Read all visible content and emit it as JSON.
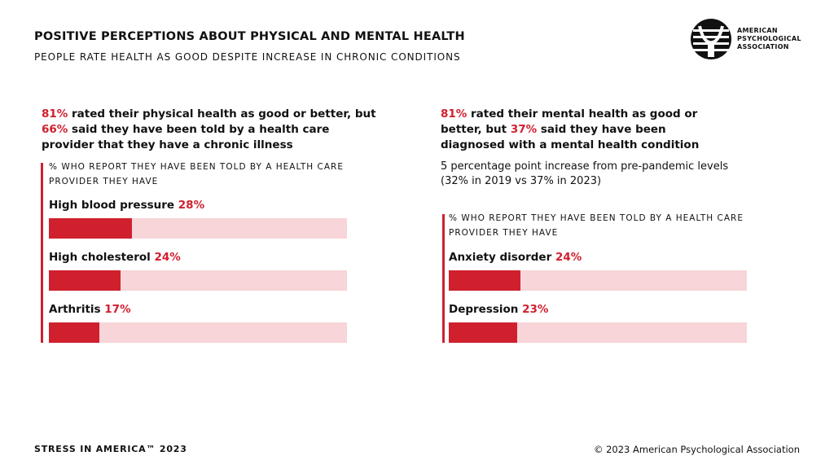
{
  "header": {
    "title": "POSITIVE PERCEPTIONS ABOUT PHYSICAL AND MENTAL HEALTH",
    "subtitle": "PEOPLE RATE HEALTH AS GOOD DESPITE INCREASE IN CHRONIC CONDITIONS",
    "logo": [
      "AMERICAN",
      "PSYCHOLOGICAL",
      "ASSOCIATION"
    ]
  },
  "panels": [
    {
      "headline": [
        "81%",
        " rated their physical health as good or better, but ",
        "66%",
        " said they have been told by a health care provider that they have a chronic illness"
      ]
    },
    {
      "headline": [
        "81%",
        " rated their mental health as good or better, but ",
        "37%",
        " said they have been diagnosed with a mental health condition"
      ],
      "note": [
        "5 percentage point increase from pre-pandemic levels",
        "(32% in 2019 vs 37% in 2023)"
      ]
    }
  ],
  "chart_data": [
    {
      "type": "bar",
      "orientation": "horizontal",
      "title": "% WHO REPORT THEY HAVE BEEN TOLD BY A HEALTH CARE PROVIDER THEY HAVE",
      "categories": [
        "High blood pressure",
        "High cholesterol",
        "Arthritis"
      ],
      "values": [
        28,
        24,
        17
      ],
      "value_labels": [
        "28%",
        "24%",
        "17%"
      ],
      "color": "#d0202e",
      "track_color": "#f7d5d8",
      "xlim": [
        0,
        100
      ]
    },
    {
      "type": "bar",
      "orientation": "horizontal",
      "title": "% WHO REPORT THEY HAVE BEEN TOLD BY A HEALTH CARE PROVIDER THEY HAVE",
      "categories": [
        "Anxiety disorder",
        "Depression"
      ],
      "values": [
        24,
        23
      ],
      "value_labels": [
        "24%",
        "23%"
      ],
      "color": "#d0202e",
      "track_color": "#f7d5d8",
      "xlim": [
        0,
        100
      ]
    }
  ],
  "footer": {
    "left": "STRESS IN AMERICA™ 2023",
    "right": "© 2023 American Psychological Association"
  }
}
